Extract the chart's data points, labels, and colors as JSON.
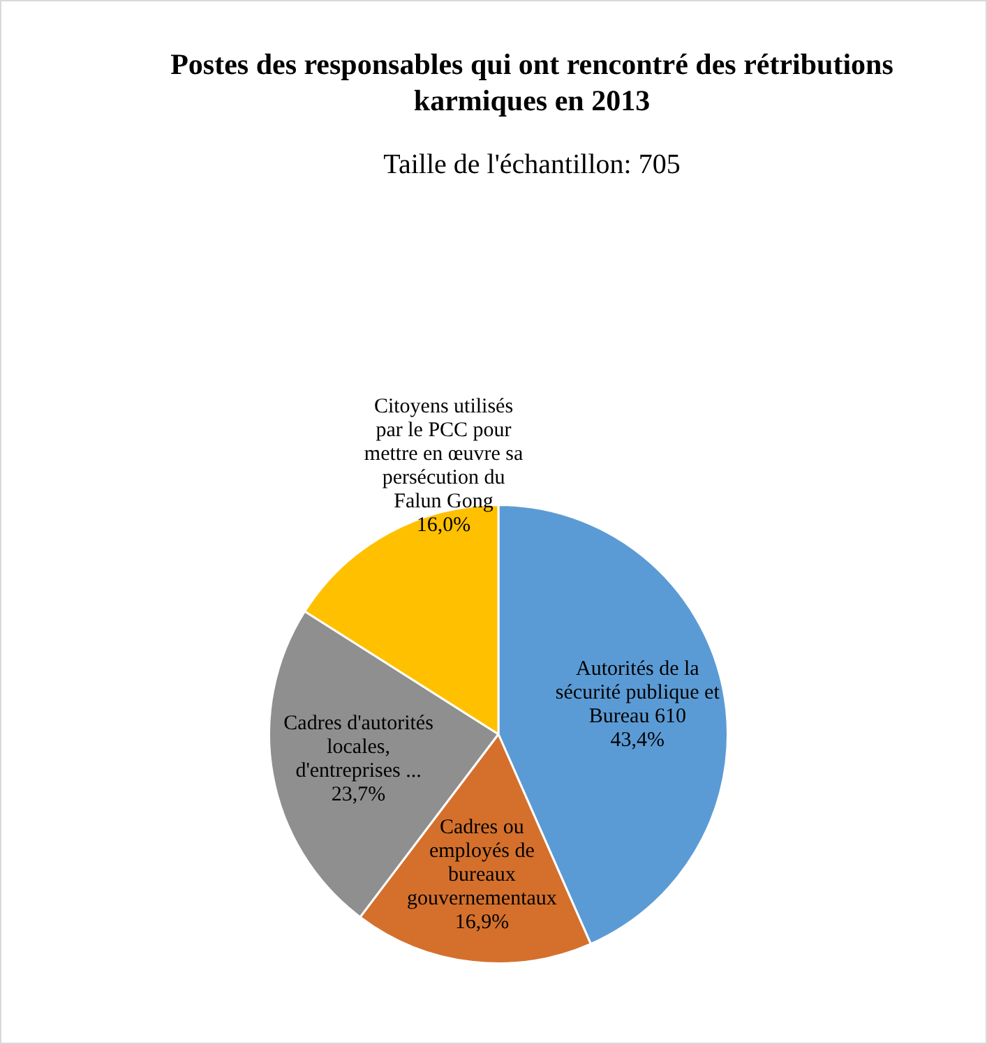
{
  "chart_data": {
    "type": "pie",
    "title": "Postes des responsables qui ont rencontré des rétributions karmiques en 2013",
    "subtitle": "Taille de l'échantillon: 705",
    "categories": [
      "Autorités de la sécurité publique et Bureau 610",
      "Cadres ou employés de bureaux gouvernementaux",
      "Cadres d'autorités locales, d'entreprises ...",
      "Citoyens utilisés par le PCC pour mettre en œuvre sa persécution du Falun Gong"
    ],
    "values": [
      43.4,
      16.9,
      23.7,
      16.0
    ],
    "value_labels": [
      "43,4%",
      "16,9%",
      "23,7%",
      "16,0%"
    ],
    "colors": [
      "#5b9bd5",
      "#d4702c",
      "#8f8f8f",
      "#ffc000"
    ],
    "legend": false
  }
}
